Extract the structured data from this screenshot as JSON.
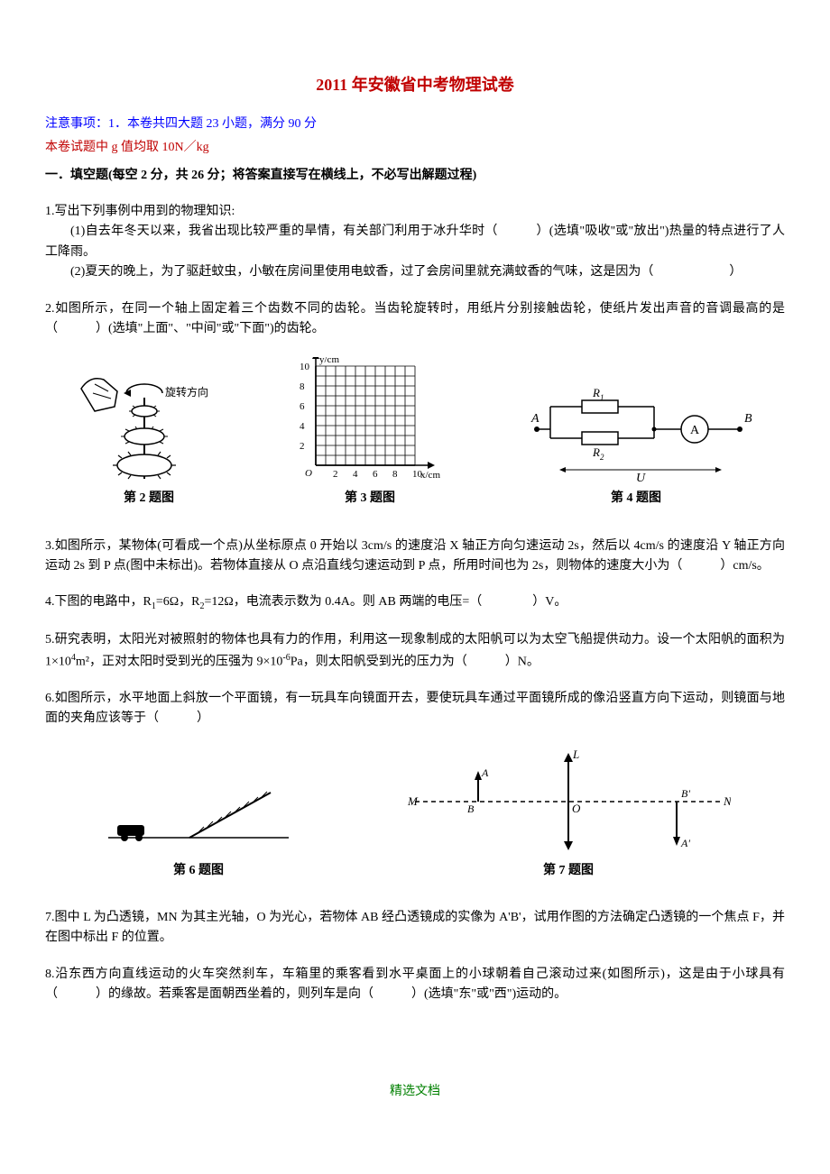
{
  "title": "2011 年安徽省中考物理试卷",
  "notice": "注意事项：1．本卷共四大题 23 小题，满分 90 分",
  "sub_notice": "本卷试题中 g 值均取 10N／kg",
  "section1_header": "一．填空题(每空 2 分，共 26 分；将答案直接写在横线上，不必写出解题过程)",
  "q1_intro": "1.写出下列事例中用到的物理知识:",
  "q1_sub1": "(1)自去年冬天以来，我省出现比较严重的旱情，有关部门利用于冰升华时（　　　）(选填\"吸收''或\"放出\")热量的特点进行了人　工降雨。",
  "q1_sub2": "(2)夏天的晚上，为了驱赶蚊虫，小敏在房间里使用电蚊香，过了会房间里就充满蚊香的气味，这是因为（　　　　　　）",
  "q2": "2.如图所示，在同一个轴上固定着三个齿数不同的齿轮。当齿轮旋转时，用纸片分别接触齿轮，使纸片发出声音的音调最高的是（　　　）(选填\"上面\"、\"中间\"或\"下面\")的齿轮。",
  "fig2_caption": "第 2 题图",
  "fig2_arrow_label": "旋转方向",
  "fig3_axes": {
    "xlabel": "x/cm",
    "ylabel": "y/cm",
    "xticks": [
      "2",
      "4",
      "6",
      "8",
      "10"
    ],
    "yticks": [
      "2",
      "4",
      "6",
      "8",
      "10"
    ],
    "xmax": 11,
    "ymax": 11,
    "grid_step": 1,
    "font_size": 11
  },
  "fig3_caption": "第 3 题图",
  "fig4_caption": "第 4 题图",
  "fig4_labels": {
    "A": "A",
    "B": "B",
    "R1": "R",
    "R1sub": "1",
    "R2": "R",
    "R2sub": "2",
    "U": "U",
    "Ammeter": "A"
  },
  "q3": "3.如图所示，某物体(可看成一个点)从坐标原点 0 开始以 3cm/s 的速度沿 X 轴正方向匀速运动 2s，然后以 4cm/s 的速度沿 Y 轴正方向运动 2s 到 P 点(图中未标出)。若物体直接从 O 点沿直线匀速运动到 P 点，所用时间也为 2s，则物体的速度大小为（　　　）cm/s。",
  "q4_pre": "4.下图的电路中，R",
  "q4_r1": "=6Ω，R",
  "q4_r2": "=12Ω，电流表示数为 0.4A。则 AB 两端的电压=（　　　　）V。",
  "q5_pre": "5.研究表明，太阳光对被照射的物体也具有力的作用，利用这一现象制成的太阳帆可以为太空飞船提供动力。设一个太阳帆的面积为 1×10",
  "q5_exp1": "4",
  "q5_mid": "m²，正对太阳时受到光的压强为 9×10",
  "q5_exp2": "-6",
  "q5_end": "Pa，则太阳帆受到光的压力为（　　　）N。",
  "q6": "6.如图所示，水平地面上斜放一个平面镜，有一玩具车向镜面开去，要使玩具车通过平面镜所成的像沿竖直方向下运动，则镜面与地面的夹角应该等于（　　　）",
  "fig6_caption": "第 6 题图",
  "fig7_caption": "第 7 题图",
  "fig7_labels": {
    "M": "M",
    "N": "N",
    "L": "L",
    "O": "O",
    "A": "A",
    "B": "B",
    "Ap": "A'",
    "Bp": "B'"
  },
  "q7": "7.图中 L 为凸透镜，MN 为其主光轴，O 为光心，若物体 AB 经凸透镜成的实像为 A'B'，试用作图的方法确定凸透镜的一个焦点 F，并在图中标出 F 的位置。",
  "q8": "8.沿东西方向直线运动的火车突然刹车，车箱里的乘客看到水平桌面上的小球朝着自己滚动过来(如图所示)，这是由于小球具有（　　　）的缘故。若乘客是面朝西坐着的，则列车是向（　　　）(选填\"东\"或\"西\")运动的。",
  "footer": "精选文档",
  "colors": {
    "title": "#c00000",
    "notice": "#0000ff",
    "sub_notice": "#c00000",
    "footer": "#008000",
    "text": "#000000"
  }
}
